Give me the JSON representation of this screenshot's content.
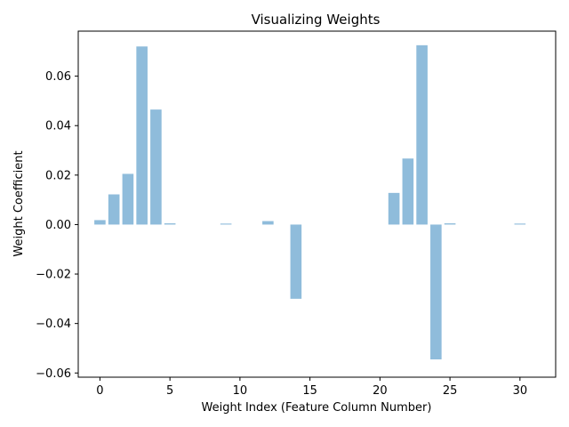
{
  "chart_data": {
    "type": "bar",
    "title": "Visualizing Weights",
    "xlabel": "Weight Index (Feature Column Number)",
    "ylabel": "Weight Coefficient",
    "x": [
      0,
      1,
      2,
      3,
      4,
      5,
      6,
      7,
      8,
      9,
      10,
      11,
      12,
      13,
      14,
      15,
      16,
      17,
      18,
      19,
      20,
      21,
      22,
      23,
      24,
      25,
      26,
      27,
      28,
      29,
      30,
      31
    ],
    "values": [
      0.0018,
      0.0122,
      0.0205,
      0.072,
      0.0465,
      0.0005,
      0,
      0,
      0,
      0.0004,
      0,
      0,
      0.0014,
      0,
      -0.03,
      0,
      0,
      0,
      0,
      0,
      0,
      0.0128,
      0.0267,
      0.0725,
      -0.0545,
      0.0005,
      0,
      0,
      0,
      0,
      0.0004,
      0
    ],
    "xlim": [
      -1.55,
      32.55
    ],
    "ylim": [
      -0.0617,
      0.0782
    ],
    "x_ticks": [
      0,
      5,
      10,
      15,
      20,
      25,
      30
    ],
    "x_tick_labels": [
      "0",
      "5",
      "10",
      "15",
      "20",
      "25",
      "30"
    ],
    "y_ticks": [
      -0.06,
      -0.04,
      -0.02,
      0.0,
      0.02,
      0.04,
      0.06
    ],
    "y_tick_labels": [
      "−0.06",
      "−0.04",
      "−0.02",
      "0.00",
      "0.02",
      "0.04",
      "0.06"
    ],
    "bar_color": "#8fbcdb",
    "grid": false,
    "legend": false
  }
}
